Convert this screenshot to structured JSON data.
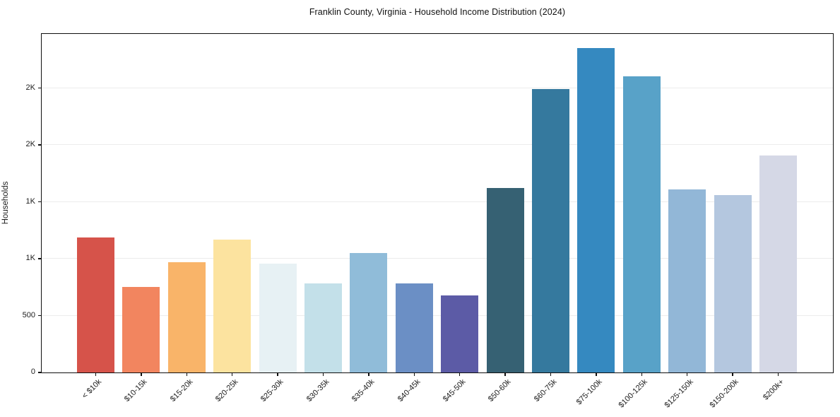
{
  "chart_data": {
    "type": "bar",
    "title": "Franklin County, Virginia - Household Income Distribution (2024)",
    "xlabel": "",
    "ylabel": "Households",
    "categories": [
      "< $10k",
      "$10-15k",
      "$15-20k",
      "$20-25k",
      "$25-30k",
      "$30-35k",
      "$35-40k",
      "$40-45k",
      "$45-50k",
      "$50-60k",
      "$60-75k",
      "$75-100k",
      "$100-125k",
      "$125-150k",
      "$150-200k",
      "$200k+"
    ],
    "values": [
      1185,
      755,
      970,
      1170,
      960,
      785,
      1050,
      780,
      680,
      1620,
      2490,
      2850,
      2605,
      1610,
      1560,
      1910
    ],
    "bar_colors": [
      "#d6534a",
      "#f2855f",
      "#f9b469",
      "#fce39f",
      "#e7f1f4",
      "#c3e0e9",
      "#90bcd9",
      "#6b8fc5",
      "#5c5ba6",
      "#366173",
      "#35799e",
      "#3589c0",
      "#58a2c8",
      "#92b7d7",
      "#b4c7df",
      "#d5d8e6"
    ],
    "ylim": [
      0,
      2970
    ],
    "yticks": [
      {
        "value": 0,
        "label": "0"
      },
      {
        "value": 500,
        "label": "500"
      },
      {
        "value": 1000,
        "label": "1K"
      },
      {
        "value": 1500,
        "label": "1K"
      },
      {
        "value": 2000,
        "label": "2K"
      },
      {
        "value": 2500,
        "label": "2K"
      }
    ],
    "grid": "horizontal",
    "legend": "none",
    "bar_edge": "none"
  },
  "colors": {
    "background": "#ffffff",
    "spine": "#0f0f0f",
    "gridline": "#ececec",
    "text": "#1c1c1c"
  }
}
